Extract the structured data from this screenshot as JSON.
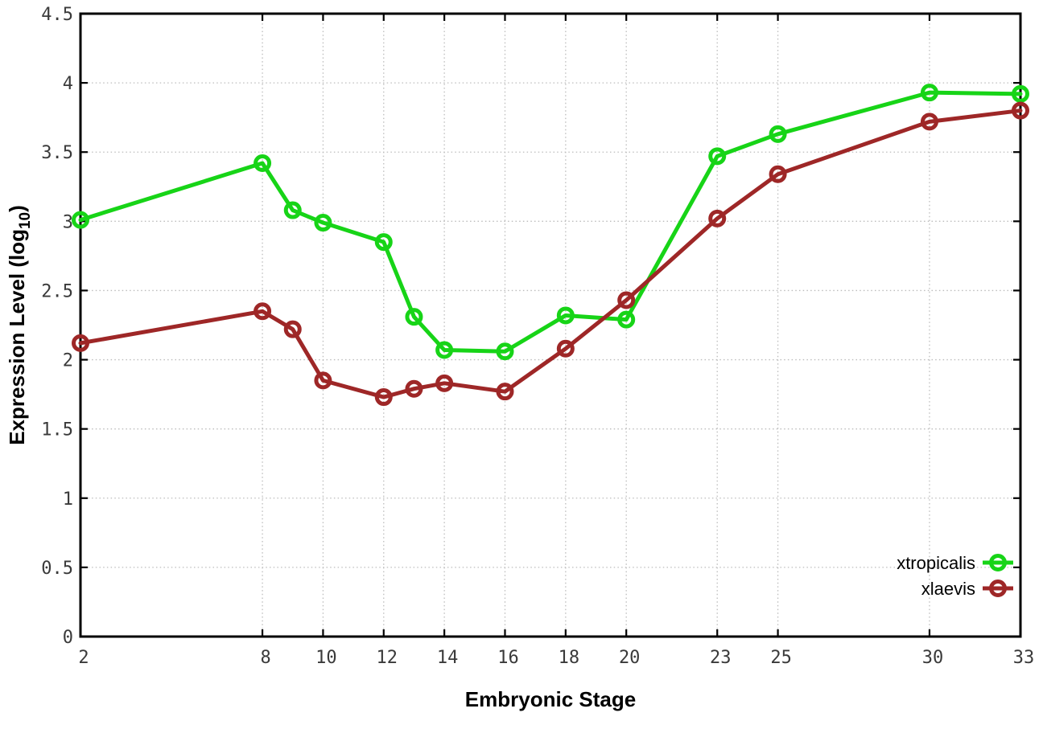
{
  "chart_data": {
    "type": "line",
    "title": "",
    "xlabel": "Embryonic Stage",
    "ylabel": "Expression Level (log10)",
    "ylabel_parts": {
      "main": "Expression Level (log",
      "sub": "10",
      "end": ")"
    },
    "xlim": [
      2,
      33
    ],
    "ylim": [
      0,
      4.5
    ],
    "grid": true,
    "legend_position": "bottom-right",
    "x_ticks": [
      2,
      8,
      10,
      12,
      14,
      16,
      18,
      20,
      23,
      25,
      30,
      33
    ],
    "x_tick_labels": [
      "2",
      "8",
      "10",
      "12",
      "14",
      "16",
      "18",
      "20",
      "23",
      "25",
      "30",
      "33"
    ],
    "y_ticks": [
      0,
      0.5,
      1,
      1.5,
      2,
      2.5,
      3,
      3.5,
      4,
      4.5
    ],
    "y_tick_labels": [
      "0",
      "0.5",
      "1",
      "1.5",
      "2",
      "2.5",
      "3",
      "3.5",
      "4",
      "4.5"
    ],
    "x": [
      2,
      8,
      9,
      10,
      12,
      13,
      14,
      16,
      18,
      20,
      23,
      25,
      30,
      33
    ],
    "series": [
      {
        "name": "xtropicalis",
        "color": "#17d417",
        "marker": "open-circle",
        "values": [
          3.01,
          3.42,
          3.08,
          2.99,
          2.85,
          2.31,
          2.07,
          2.06,
          2.32,
          2.29,
          3.47,
          3.63,
          3.93,
          3.92
        ]
      },
      {
        "name": "xlaevis",
        "color": "#9e2727",
        "marker": "open-circle",
        "values": [
          2.12,
          2.35,
          2.22,
          1.85,
          1.73,
          1.79,
          1.83,
          1.77,
          2.08,
          2.43,
          3.02,
          3.34,
          3.72,
          3.8
        ]
      }
    ]
  },
  "colors": {
    "background": "#ffffff",
    "border": "#000000",
    "grid": "#bcbcbc",
    "tick_text": "#3a3a3a",
    "axis_title_text": "#000000"
  }
}
